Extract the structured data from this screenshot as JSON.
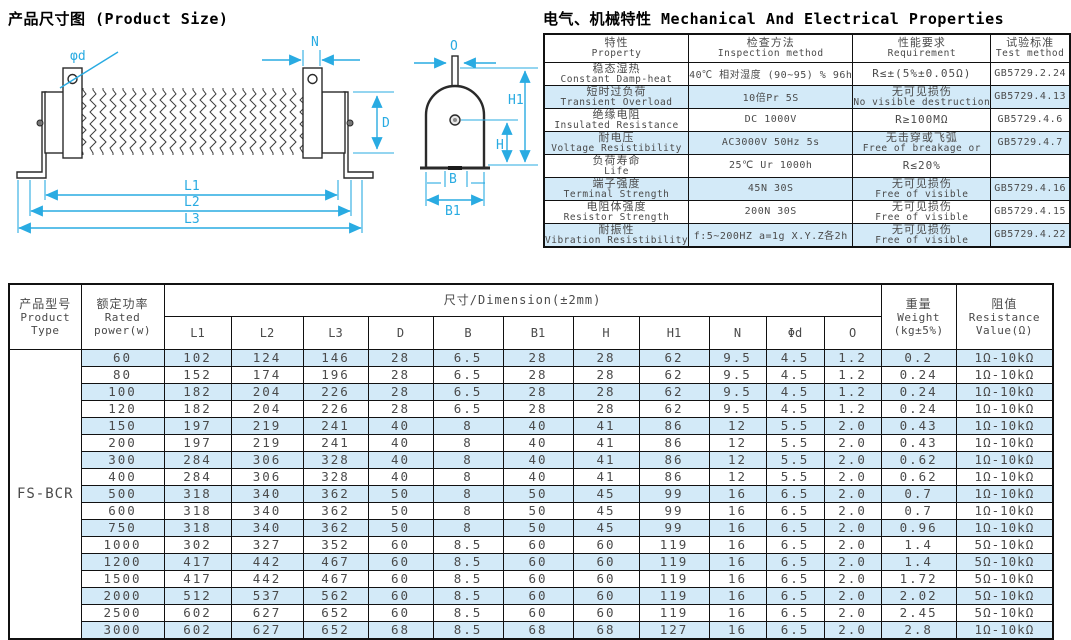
{
  "titles": {
    "left": "产品尺寸图 (Product Size)",
    "right": "电气、机械特性 Mechanical And Electrical Properties"
  },
  "colors": {
    "accent": "#29abe2",
    "row_highlight": "#d3eaf8",
    "border": "#111111",
    "text": "#4a4a4a"
  },
  "diagram": {
    "labels": {
      "phi_d": "φd",
      "N": "N",
      "D": "D",
      "L1": "L1",
      "L2": "L2",
      "L3": "L3",
      "O": "O",
      "H1": "H1",
      "H": "H",
      "B": "B",
      "B1": "B1"
    }
  },
  "properties_table": {
    "headers": [
      {
        "zh": "特性",
        "en": "Property"
      },
      {
        "zh": "检查方法",
        "en": "Inspection method"
      },
      {
        "zh": "性能要求",
        "en": "Requirement"
      },
      {
        "zh": "试验标准",
        "en": "Test method"
      }
    ],
    "rows": [
      {
        "property_zh": "稳态湿热",
        "property_en": "Constant Damp-heat",
        "method": "40℃ 相对湿度 (90~95) % 96h",
        "req_zh": "R≤±(5%±0.05Ω)",
        "req_en": "",
        "standard": "GB5729.2.24",
        "highlight": false
      },
      {
        "property_zh": "短时过负荷",
        "property_en": "Transient Overload",
        "method": "10倍Pr 5S",
        "req_zh": "无可见损伤",
        "req_en": "No visible destruction",
        "standard": "GB5729.4.13",
        "highlight": true
      },
      {
        "property_zh": "绝缘电阻",
        "property_en": "Insulated Resistance",
        "method": "DC 1000V",
        "req_zh": "R≥100MΩ",
        "req_en": "",
        "standard": "GB5729.4.6",
        "highlight": false
      },
      {
        "property_zh": "耐电压",
        "property_en": "Voltage Resistibility",
        "method": "AC3000V 50Hz 5s",
        "req_zh": "无击穿或飞弧",
        "req_en": "Free of breakage or",
        "standard": "GB5729.4.7",
        "highlight": true
      },
      {
        "property_zh": "负荷寿命",
        "property_en": "Life",
        "method": "25℃ Ur  1000h",
        "req_zh": "R≤20%",
        "req_en": "",
        "standard": "",
        "highlight": false
      },
      {
        "property_zh": "端子强度",
        "property_en": "Terminal Strength",
        "method": "45N 30S",
        "req_zh": "无可见损伤",
        "req_en": "Free of visible",
        "standard": "GB5729.4.16",
        "highlight": true
      },
      {
        "property_zh": "电阻体强度",
        "property_en": "Resistor Strength",
        "method": "200N 30S",
        "req_zh": "无可见损伤",
        "req_en": "Free of visible",
        "standard": "GB5729.4.15",
        "highlight": false
      },
      {
        "property_zh": "耐振性",
        "property_en": "Vibration Resistibility",
        "method": "f:5~200HZ a=1g X.Y.Z各2h",
        "req_zh": "无可见损伤",
        "req_en": "Free of visible",
        "standard": "GB5729.4.22",
        "highlight": true
      }
    ]
  },
  "dimension_table": {
    "product_type_header": [
      "产品型号",
      "Product",
      "Type"
    ],
    "rated_power_header": [
      "额定功率",
      "Rated",
      "power(w)"
    ],
    "dimension_span_header": "尺寸/Dimension(±2mm)",
    "dim_columns": [
      "L1",
      "L2",
      "L3",
      "D",
      "B",
      "B1",
      "H",
      "H1",
      "N",
      "Φd",
      "O"
    ],
    "weight_header": [
      "重量",
      "Weight",
      "(kg±5%)"
    ],
    "resistance_header": [
      "阻值",
      "Resistance",
      "Value(Ω)"
    ],
    "product_name": "FS-BCR",
    "rows": [
      {
        "power": "60",
        "dims": [
          "102",
          "124",
          "146",
          "28",
          "6.5",
          "28",
          "28",
          "62",
          "9.5",
          "4.5",
          "1.2"
        ],
        "weight": "0.2",
        "resistance": "1Ω-10kΩ",
        "highlight": true
      },
      {
        "power": "80",
        "dims": [
          "152",
          "174",
          "196",
          "28",
          "6.5",
          "28",
          "28",
          "62",
          "9.5",
          "4.5",
          "1.2"
        ],
        "weight": "0.24",
        "resistance": "1Ω-10kΩ",
        "highlight": false
      },
      {
        "power": "100",
        "dims": [
          "182",
          "204",
          "226",
          "28",
          "6.5",
          "28",
          "28",
          "62",
          "9.5",
          "4.5",
          "1.2"
        ],
        "weight": "0.24",
        "resistance": "1Ω-10kΩ",
        "highlight": true
      },
      {
        "power": "120",
        "dims": [
          "182",
          "204",
          "226",
          "28",
          "6.5",
          "28",
          "28",
          "62",
          "9.5",
          "4.5",
          "1.2"
        ],
        "weight": "0.24",
        "resistance": "1Ω-10kΩ",
        "highlight": false
      },
      {
        "power": "150",
        "dims": [
          "197",
          "219",
          "241",
          "40",
          "8",
          "40",
          "41",
          "86",
          "12",
          "5.5",
          "2.0"
        ],
        "weight": "0.43",
        "resistance": "1Ω-10kΩ",
        "highlight": true
      },
      {
        "power": "200",
        "dims": [
          "197",
          "219",
          "241",
          "40",
          "8",
          "40",
          "41",
          "86",
          "12",
          "5.5",
          "2.0"
        ],
        "weight": "0.43",
        "resistance": "1Ω-10kΩ",
        "highlight": false
      },
      {
        "power": "300",
        "dims": [
          "284",
          "306",
          "328",
          "40",
          "8",
          "40",
          "41",
          "86",
          "12",
          "5.5",
          "2.0"
        ],
        "weight": "0.62",
        "resistance": "1Ω-10kΩ",
        "highlight": true
      },
      {
        "power": "400",
        "dims": [
          "284",
          "306",
          "328",
          "40",
          "8",
          "40",
          "41",
          "86",
          "12",
          "5.5",
          "2.0"
        ],
        "weight": "0.62",
        "resistance": "1Ω-10kΩ",
        "highlight": false
      },
      {
        "power": "500",
        "dims": [
          "318",
          "340",
          "362",
          "50",
          "8",
          "50",
          "45",
          "99",
          "16",
          "6.5",
          "2.0"
        ],
        "weight": "0.7",
        "resistance": "1Ω-10kΩ",
        "highlight": true
      },
      {
        "power": "600",
        "dims": [
          "318",
          "340",
          "362",
          "50",
          "8",
          "50",
          "45",
          "99",
          "16",
          "6.5",
          "2.0"
        ],
        "weight": "0.7",
        "resistance": "1Ω-10kΩ",
        "highlight": false
      },
      {
        "power": "750",
        "dims": [
          "318",
          "340",
          "362",
          "50",
          "8",
          "50",
          "45",
          "99",
          "16",
          "6.5",
          "2.0"
        ],
        "weight": "0.96",
        "resistance": "1Ω-10kΩ",
        "highlight": true
      },
      {
        "power": "1000",
        "dims": [
          "302",
          "327",
          "352",
          "60",
          "8.5",
          "60",
          "60",
          "119",
          "16",
          "6.5",
          "2.0"
        ],
        "weight": "1.4",
        "resistance": "5Ω-10kΩ",
        "highlight": false
      },
      {
        "power": "1200",
        "dims": [
          "417",
          "442",
          "467",
          "60",
          "8.5",
          "60",
          "60",
          "119",
          "16",
          "6.5",
          "2.0"
        ],
        "weight": "1.4",
        "resistance": "5Ω-10kΩ",
        "highlight": true
      },
      {
        "power": "1500",
        "dims": [
          "417",
          "442",
          "467",
          "60",
          "8.5",
          "60",
          "60",
          "119",
          "16",
          "6.5",
          "2.0"
        ],
        "weight": "1.72",
        "resistance": "5Ω-10kΩ",
        "highlight": false
      },
      {
        "power": "2000",
        "dims": [
          "512",
          "537",
          "562",
          "60",
          "8.5",
          "60",
          "60",
          "119",
          "16",
          "6.5",
          "2.0"
        ],
        "weight": "2.02",
        "resistance": "5Ω-10kΩ",
        "highlight": true
      },
      {
        "power": "2500",
        "dims": [
          "602",
          "627",
          "652",
          "60",
          "8.5",
          "60",
          "60",
          "119",
          "16",
          "6.5",
          "2.0"
        ],
        "weight": "2.45",
        "resistance": "5Ω-10kΩ",
        "highlight": false
      },
      {
        "power": "3000",
        "dims": [
          "602",
          "627",
          "652",
          "68",
          "8.5",
          "68",
          "68",
          "127",
          "16",
          "6.5",
          "2.0"
        ],
        "weight": "2.8",
        "resistance": "1Ω-10kΩ",
        "highlight": true
      }
    ]
  }
}
